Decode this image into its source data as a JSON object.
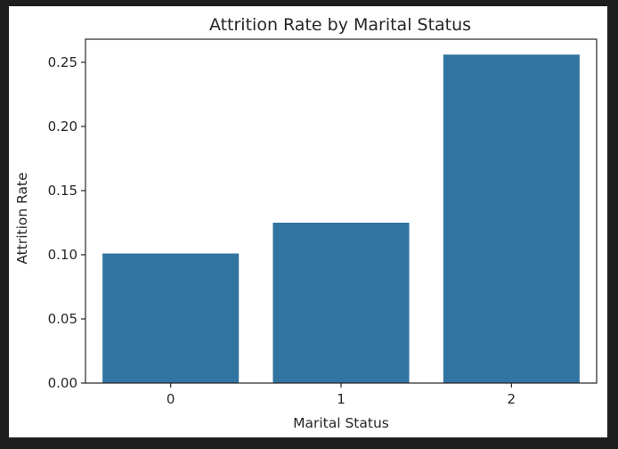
{
  "chart_data": {
    "type": "bar",
    "title": "Attrition Rate by Marital Status",
    "xlabel": "Marital Status",
    "ylabel": "Attrition Rate",
    "categories": [
      "0",
      "1",
      "2"
    ],
    "values": [
      0.101,
      0.125,
      0.256
    ],
    "ylim": [
      0,
      0.268
    ],
    "yticks": [
      0.0,
      0.05,
      0.1,
      0.15,
      0.2,
      0.25
    ],
    "ytick_labels": [
      "0.00",
      "0.05",
      "0.10",
      "0.15",
      "0.20",
      "0.25"
    ],
    "bar_color": "#3274a1",
    "grid": false,
    "legend": "none"
  }
}
